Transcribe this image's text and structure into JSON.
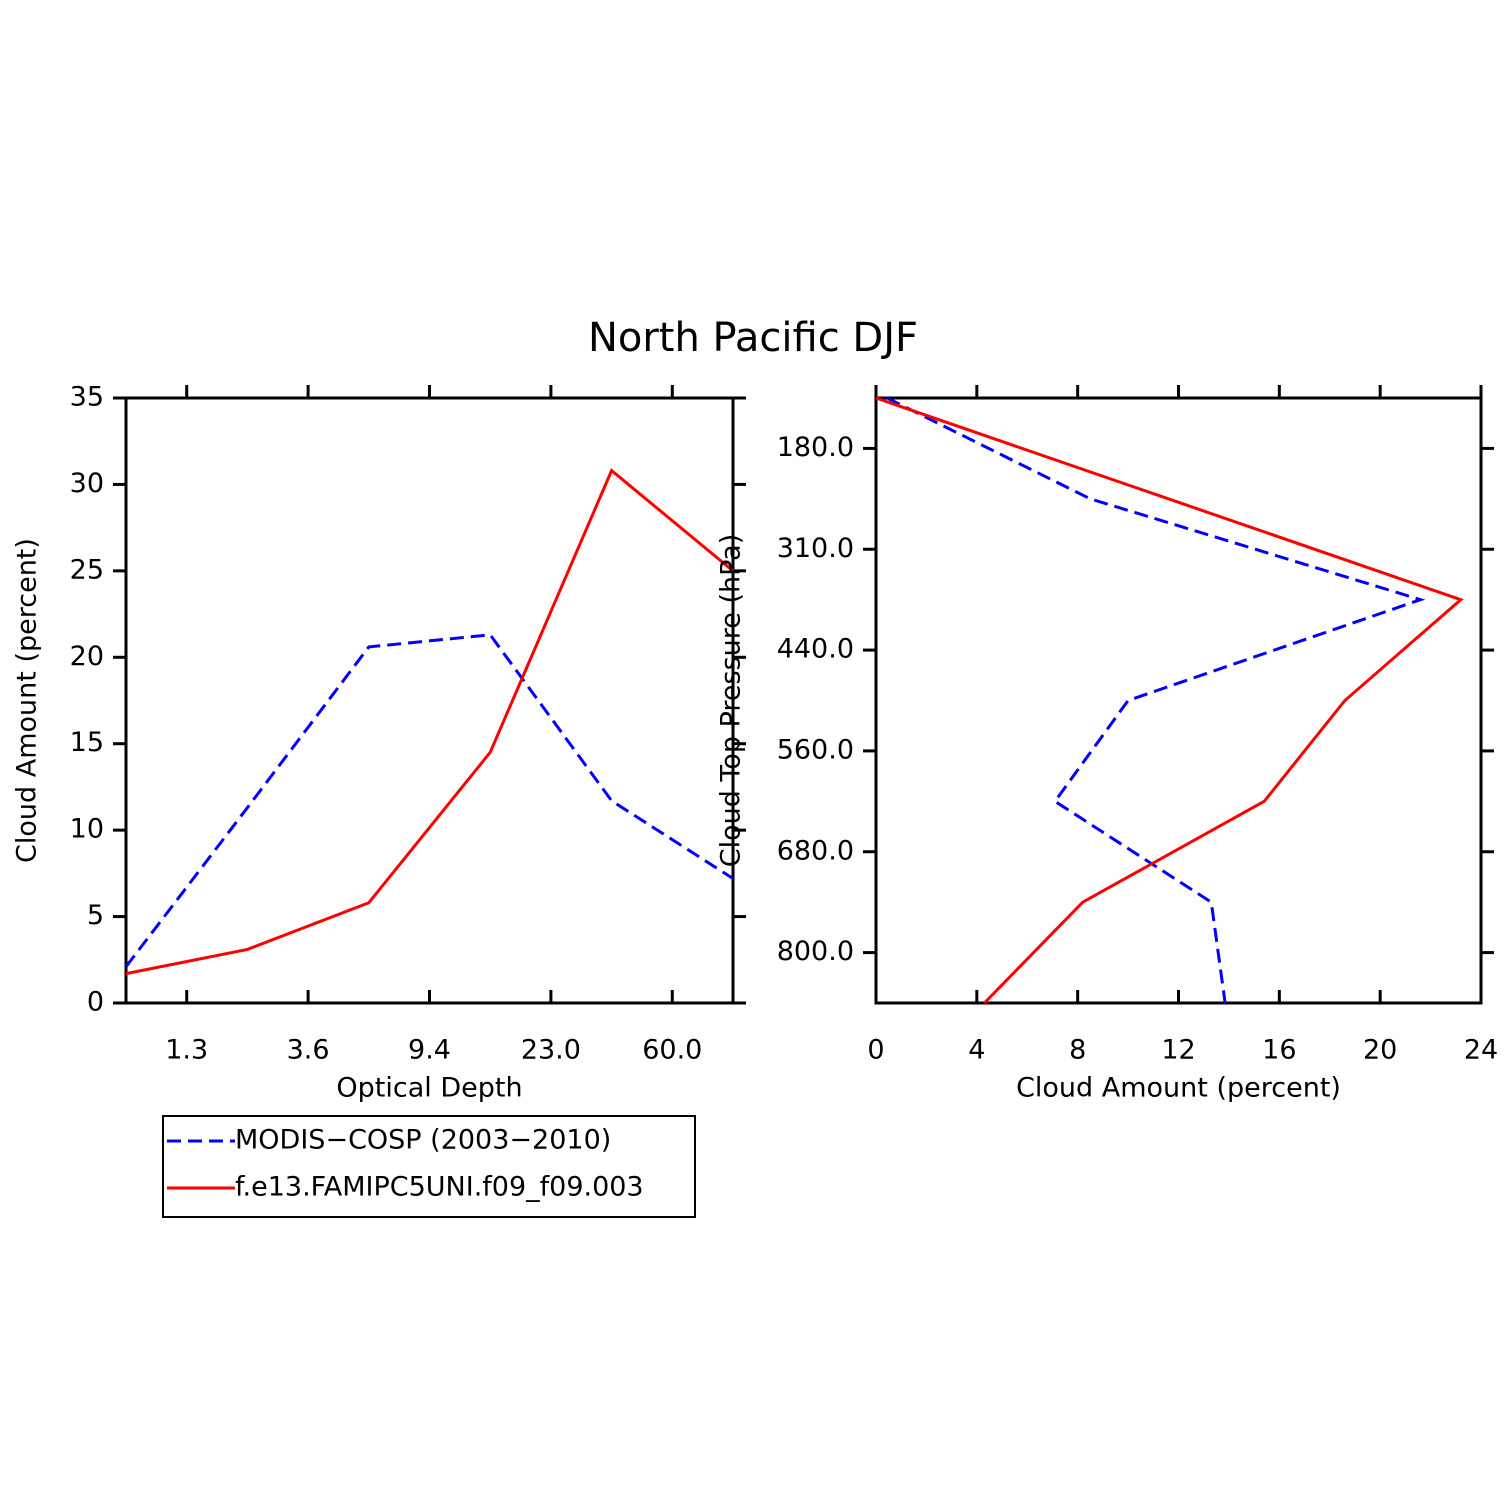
{
  "title": "North Pacific DJF",
  "chart_data": [
    {
      "type": "line",
      "orientation": "vertical",
      "xlabel": "Optical Depth",
      "ylabel": "Cloud Amount (percent)",
      "x": [
        0,
        1,
        2,
        3,
        4,
        5
      ],
      "xlim": [
        0,
        5
      ],
      "xticks": [
        {
          "value": 0.5,
          "label": "1.3"
        },
        {
          "value": 1.5,
          "label": "3.6"
        },
        {
          "value": 2.5,
          "label": "9.4"
        },
        {
          "value": 3.5,
          "label": "23.0"
        },
        {
          "value": 4.5,
          "label": "60.0"
        }
      ],
      "ylim": [
        0,
        35
      ],
      "yticks": [
        0,
        5,
        10,
        15,
        20,
        25,
        30,
        35
      ],
      "series": [
        {
          "name": "MODIS−COSP (2003−2010)",
          "color": "#0000ff",
          "style": "dashed",
          "values": [
            2.1,
            11.3,
            20.6,
            21.3,
            11.7,
            7.2
          ]
        },
        {
          "name": "f.e13.FAMIPC5UNI.f09_f09.003",
          "color": "#ff0000",
          "style": "solid",
          "values": [
            1.7,
            3.1,
            5.8,
            14.5,
            30.8,
            25.0
          ]
        }
      ]
    },
    {
      "type": "line",
      "orientation": "horizontal",
      "xlabel": "Cloud Amount (percent)",
      "ylabel": "Cloud Top Pressure (hPa)",
      "y": [
        0,
        1,
        2,
        3,
        4,
        5,
        6
      ],
      "ylim": [
        0,
        6
      ],
      "y_inverted": true,
      "yticks": [
        {
          "value": 0.5,
          "label": "180.0"
        },
        {
          "value": 1.5,
          "label": "310.0"
        },
        {
          "value": 2.5,
          "label": "440.0"
        },
        {
          "value": 3.5,
          "label": "560.0"
        },
        {
          "value": 4.5,
          "label": "680.0"
        },
        {
          "value": 5.5,
          "label": "800.0"
        }
      ],
      "xlim": [
        0,
        24
      ],
      "xticks": [
        0,
        4,
        8,
        12,
        16,
        20,
        24
      ],
      "series": [
        {
          "color": "#0000ff",
          "style": "dashed",
          "values": [
            0.44,
            8.5,
            21.6,
            10.0,
            7.1,
            13.3,
            13.85
          ]
        },
        {
          "color": "#ff0000",
          "style": "solid",
          "values": [
            0,
            11.6,
            23.2,
            18.6,
            15.4,
            8.2,
            4.3
          ]
        }
      ]
    }
  ]
}
